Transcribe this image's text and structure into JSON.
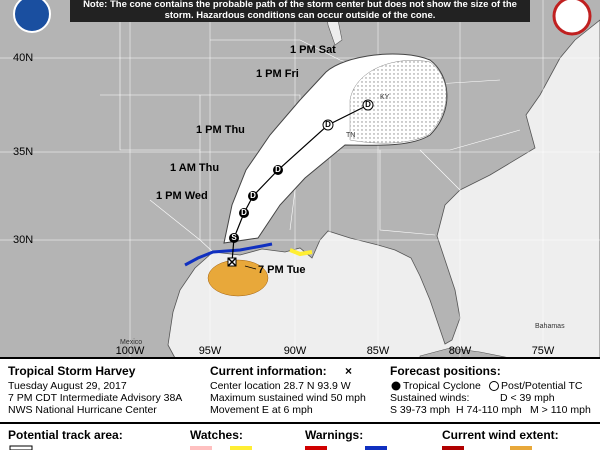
{
  "note": "Note: The cone contains the probable path of the storm center but does not show the size of the storm. Hazardous conditions can occur outside of the cone.",
  "map": {
    "latitude_labels": [
      "40N",
      "35N",
      "30N"
    ],
    "longitude_labels": [
      "100W",
      "95W",
      "90W",
      "85W",
      "80W",
      "75W"
    ],
    "place_labels": [
      "TN",
      "KY",
      "Mexico",
      "Bahamas"
    ],
    "forecast_labels": [
      "1 PM Sat",
      "1 PM Fri",
      "1 PM Thu",
      "1 AM Thu",
      "1 PM Wed",
      "7 PM Tue"
    ],
    "forecast_markers": [
      "S",
      "D",
      "D",
      "D",
      "D",
      "D"
    ]
  },
  "storm": {
    "name": "Tropical Storm Harvey",
    "date": "Tuesday August 29, 2017",
    "advisory": "7 PM CDT Intermediate Advisory 38A",
    "center": "NWS National Hurricane Center"
  },
  "current_information": {
    "title": "Current information:",
    "symbol": "×",
    "lines": [
      "Center location 28.7 N 93.9 W",
      "Maximum sustained wind 50 mph",
      "Movement E at 6 mph"
    ]
  },
  "forecast_positions": {
    "title": "Forecast positions:",
    "tropical_cyclone": "Tropical Cyclone",
    "post_potential": "Post/Potential TC",
    "sustained_winds": "Sustained winds:",
    "wind_classes": [
      "D < 39 mph",
      "S 39-73 mph",
      "H 74-110 mph",
      "M > 110 mph"
    ]
  },
  "legend": {
    "potential_track_area": "Potential track area:",
    "watches": "Watches:",
    "warnings": "Warnings:",
    "current_wind_extent": "Current wind extent:"
  }
}
